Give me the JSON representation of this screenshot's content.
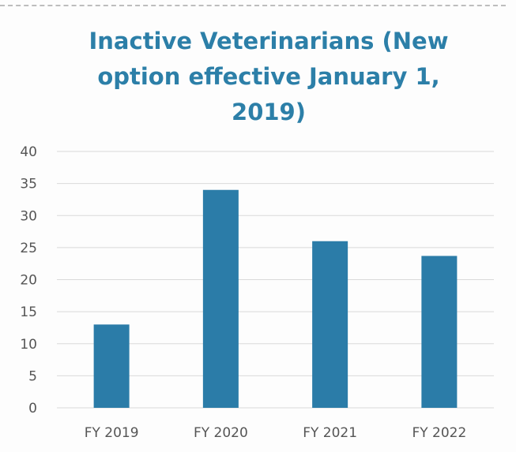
{
  "chart_data": {
    "type": "bar",
    "title": "Inactive Veterinarians (New\noption effective January 1,\n2019)",
    "categories": [
      "FY 2019",
      "FY 2020",
      "FY 2021",
      "FY 2022"
    ],
    "values": [
      13,
      34,
      26,
      23.7
    ],
    "ylim": [
      0,
      40
    ],
    "yticks": [
      0,
      5,
      10,
      15,
      20,
      25,
      30,
      35,
      40
    ],
    "xlabel": "",
    "ylabel": "",
    "grid": true,
    "legend": "none",
    "bar_color": "#2b7ca8",
    "grid_color": "#d9d9d9"
  }
}
